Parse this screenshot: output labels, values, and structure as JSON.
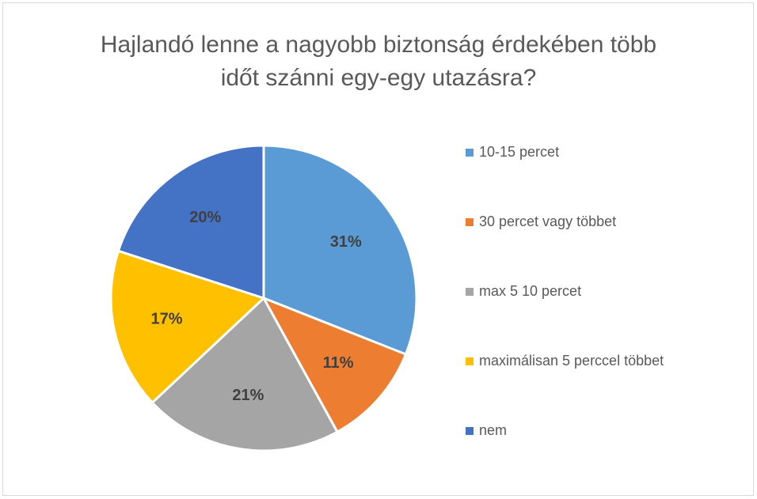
{
  "chart_data": {
    "type": "pie",
    "title": "Hajlandó lenne a nagyobb biztonság érdekében több időt szánni egy-egy utazásra?",
    "categories": [
      "10-15 percet",
      "30 percet vagy többet",
      "max 5 10 percet",
      "maximálisan 5 perccel többet",
      "nem"
    ],
    "values": [
      31,
      11,
      21,
      17,
      20
    ],
    "value_labels": [
      "31%",
      "11%",
      "21%",
      "17%",
      "20%"
    ],
    "colors": [
      "#5b9bd5",
      "#ed7d31",
      "#a5a5a5",
      "#ffc000",
      "#4472c4"
    ],
    "legend": "right"
  }
}
